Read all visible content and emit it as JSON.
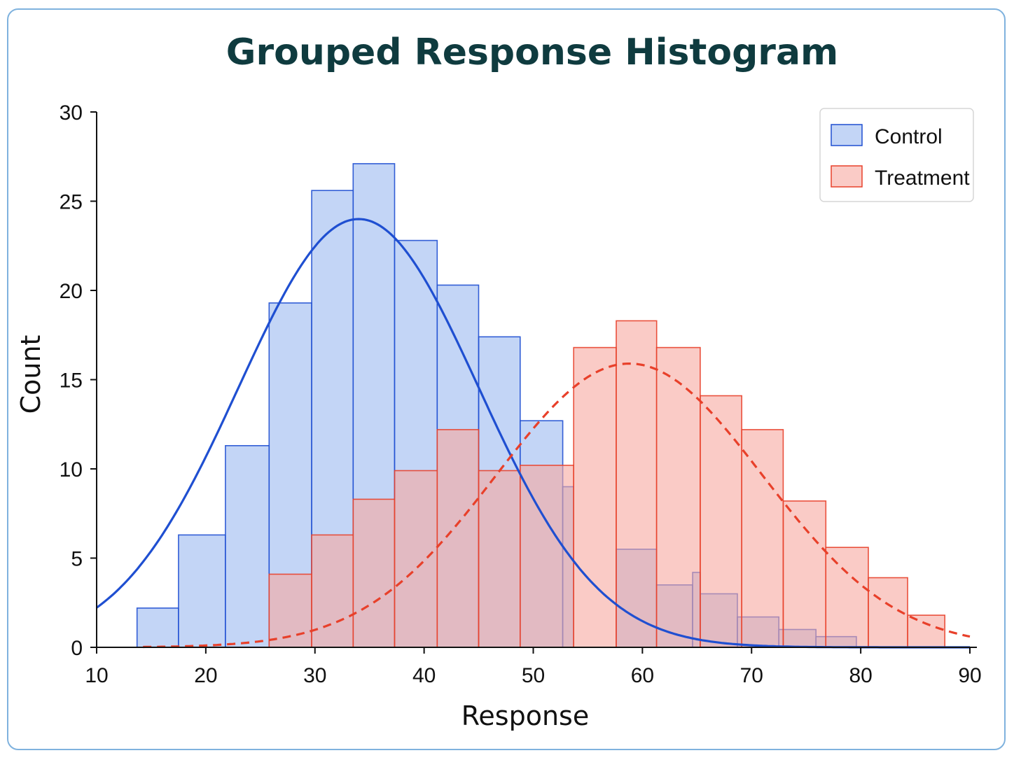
{
  "chart_data": {
    "type": "histogram",
    "title": "Grouped Response Histogram",
    "xlabel": "Response",
    "ylabel": "Count",
    "xlim": [
      10,
      90
    ],
    "ylim": [
      0,
      30
    ],
    "xticks": [
      10,
      20,
      30,
      40,
      50,
      60,
      70,
      80,
      90
    ],
    "yticks": [
      0,
      5,
      10,
      15,
      20,
      25,
      30
    ],
    "grid": false,
    "legend_position": "top-right",
    "series": [
      {
        "name": "Control",
        "color": "#1f4fd1",
        "fill": "#a9c3f2",
        "bins": [
          {
            "x0": 13.7,
            "x1": 17.5,
            "count": 2.2
          },
          {
            "x0": 17.5,
            "x1": 21.8,
            "count": 6.3
          },
          {
            "x0": 21.8,
            "x1": 25.8,
            "count": 11.3
          },
          {
            "x0": 25.8,
            "x1": 29.7,
            "count": 19.3
          },
          {
            "x0": 29.7,
            "x1": 33.5,
            "count": 25.6
          },
          {
            "x0": 33.5,
            "x1": 37.3,
            "count": 27.1
          },
          {
            "x0": 37.3,
            "x1": 41.2,
            "count": 22.8
          },
          {
            "x0": 41.2,
            "x1": 45.0,
            "count": 20.3
          },
          {
            "x0": 45.0,
            "x1": 48.8,
            "count": 17.4
          },
          {
            "x0": 48.8,
            "x1": 52.7,
            "count": 12.7
          },
          {
            "x0": 52.7,
            "x1": 53.7,
            "count": 9.0
          },
          {
            "x0": 57.6,
            "x1": 61.3,
            "count": 5.5
          },
          {
            "x0": 61.3,
            "x1": 64.6,
            "count": 3.5
          },
          {
            "x0": 64.6,
            "x1": 65.3,
            "count": 4.2
          },
          {
            "x0": 65.3,
            "x1": 68.7,
            "count": 3.0
          },
          {
            "x0": 68.7,
            "x1": 72.5,
            "count": 1.7
          },
          {
            "x0": 72.5,
            "x1": 75.9,
            "count": 1.0
          },
          {
            "x0": 75.9,
            "x1": 79.6,
            "count": 0.6
          }
        ],
        "curve": {
          "style": "solid",
          "mean": 34.0,
          "sd": 11.0,
          "peak": 24.0
        }
      },
      {
        "name": "Treatment",
        "color": "#e8402a",
        "fill": "#f7a9a0",
        "bins": [
          {
            "x0": 25.8,
            "x1": 29.7,
            "count": 4.1
          },
          {
            "x0": 29.7,
            "x1": 33.5,
            "count": 6.3
          },
          {
            "x0": 33.5,
            "x1": 37.3,
            "count": 8.3
          },
          {
            "x0": 37.3,
            "x1": 41.2,
            "count": 9.9
          },
          {
            "x0": 41.2,
            "x1": 45.0,
            "count": 12.2
          },
          {
            "x0": 45.0,
            "x1": 48.8,
            "count": 9.9
          },
          {
            "x0": 48.8,
            "x1": 53.7,
            "count": 10.2
          },
          {
            "x0": 53.7,
            "x1": 57.6,
            "count": 16.8
          },
          {
            "x0": 57.6,
            "x1": 61.3,
            "count": 18.3
          },
          {
            "x0": 61.3,
            "x1": 65.3,
            "count": 16.8
          },
          {
            "x0": 65.3,
            "x1": 69.1,
            "count": 14.1
          },
          {
            "x0": 69.1,
            "x1": 72.9,
            "count": 12.2
          },
          {
            "x0": 72.9,
            "x1": 76.8,
            "count": 8.2
          },
          {
            "x0": 76.8,
            "x1": 80.7,
            "count": 5.6
          },
          {
            "x0": 80.7,
            "x1": 84.3,
            "count": 3.9
          },
          {
            "x0": 84.3,
            "x1": 87.7,
            "count": 1.8
          }
        ],
        "curve": {
          "style": "dashed",
          "mean": 58.8,
          "sd": 12.2,
          "peak": 15.9
        }
      }
    ]
  }
}
